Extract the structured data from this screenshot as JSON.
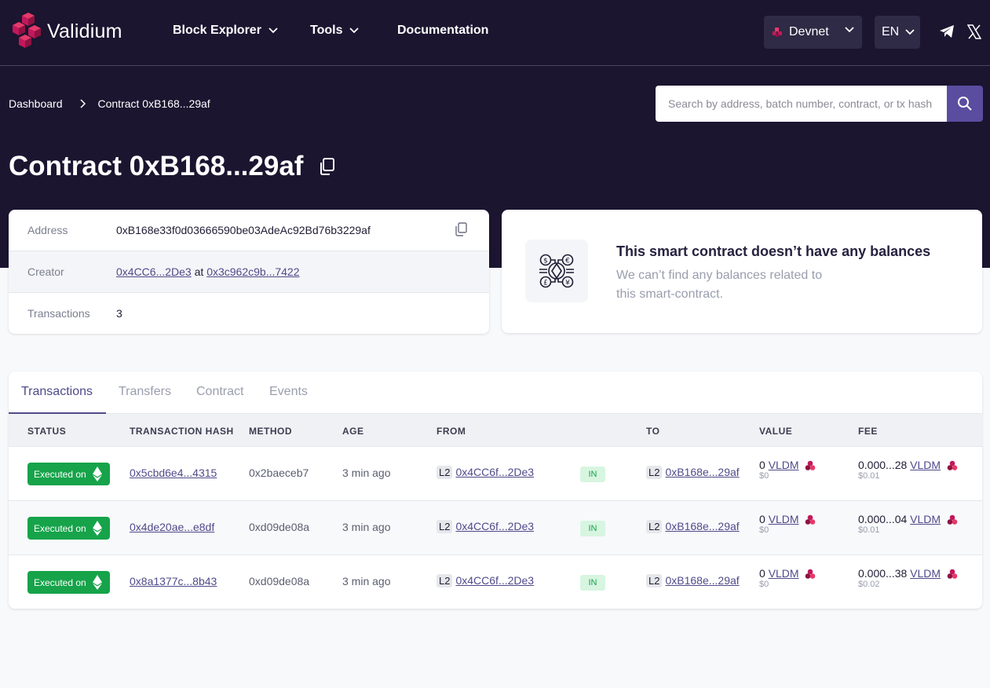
{
  "brand": {
    "name": "Validium"
  },
  "nav": {
    "block_explorer": "Block Explorer",
    "tools": "Tools",
    "documentation": "Documentation"
  },
  "network": {
    "label": "Devnet"
  },
  "language": {
    "label": "EN"
  },
  "breadcrumb": {
    "root": "Dashboard",
    "current": "Contract 0xB168...29af"
  },
  "search": {
    "placeholder": "Search by address, batch number, contract, or tx hash"
  },
  "page_title": "Contract 0xB168...29af",
  "info": {
    "address_label": "Address",
    "address_value": "0xB168e33f0d03666590be03AdeAc92Bd76b3229af",
    "creator_label": "Creator",
    "creator_address": "0x4CC6...2De3",
    "creator_at": "at",
    "creator_tx": "0x3c962c9b...7422",
    "transactions_label": "Transactions",
    "transactions_value": "3"
  },
  "balances": {
    "title": "This smart contract doesn’t have any balances",
    "subtitle": "We can’t find any balances related to this smart-contract."
  },
  "tabs": [
    "Transactions",
    "Transfers",
    "Contract",
    "Events"
  ],
  "table": {
    "headers": [
      "STATUS",
      "TRANSACTION HASH",
      "METHOD",
      "AGE",
      "FROM",
      "TO",
      "VALUE",
      "FEE"
    ],
    "rows": [
      {
        "status": "Executed on",
        "hash": "0x5cbd6e4...4315",
        "method": "0x2baeceb7",
        "age": "3 min ago",
        "from_layer": "L2",
        "from": "0x4CC6f...2De3",
        "direction": "IN",
        "to_layer": "L2",
        "to": "0xB168e...29af",
        "value": "0",
        "value_token": "VLDM",
        "value_usd": "$0",
        "fee": "0.000...28",
        "fee_token": "VLDM",
        "fee_usd": "$0.01"
      },
      {
        "status": "Executed on",
        "hash": "0x4de20ae...e8df",
        "method": "0xd09de08a",
        "age": "3 min ago",
        "from_layer": "L2",
        "from": "0x4CC6f...2De3",
        "direction": "IN",
        "to_layer": "L2",
        "to": "0xB168e...29af",
        "value": "0",
        "value_token": "VLDM",
        "value_usd": "$0",
        "fee": "0.000...04",
        "fee_token": "VLDM",
        "fee_usd": "$0.01"
      },
      {
        "status": "Executed on",
        "hash": "0x8a1377c...8b43",
        "method": "0xd09de08a",
        "age": "3 min ago",
        "from_layer": "L2",
        "from": "0x4CC6f...2De3",
        "direction": "IN",
        "to_layer": "L2",
        "to": "0xB168e...29af",
        "value": "0",
        "value_token": "VLDM",
        "value_usd": "$0",
        "fee": "0.000...38",
        "fee_token": "VLDM",
        "fee_usd": "$0.02"
      }
    ]
  },
  "colors": {
    "header_bg": "#1b1530",
    "accent": "#5a4da0",
    "success": "#16a34a",
    "brand": "#c2185b"
  },
  "icons": [
    "validium-logo-icon",
    "chevron-down-icon",
    "devnet-icon",
    "telegram-icon",
    "x-icon",
    "chevron-right-icon",
    "search-icon",
    "copy-icon",
    "balances-icon",
    "ethereum-icon",
    "vldm-token-icon"
  ]
}
